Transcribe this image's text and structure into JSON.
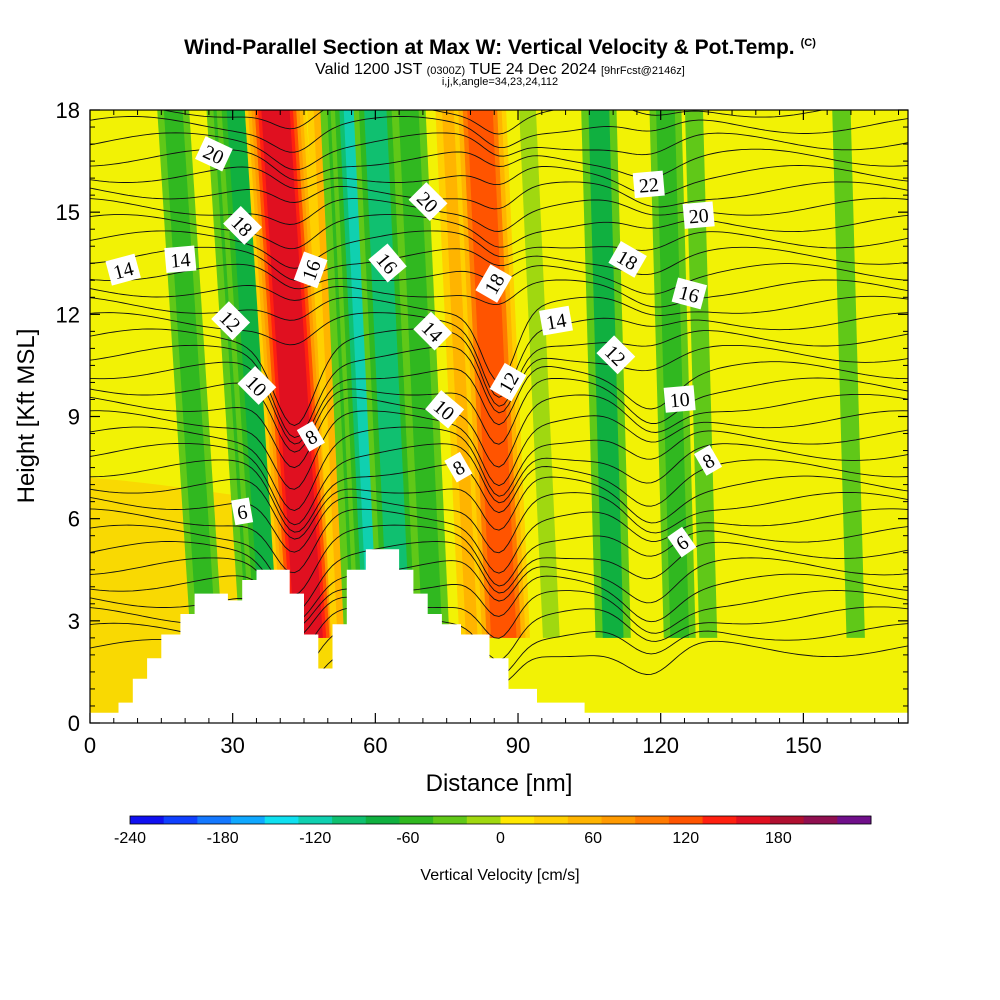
{
  "title": {
    "main": "Wind-Parallel Section at Max W: Vertical Velocity & Pot.Temp.",
    "copyright": "(C)",
    "valid_prefix": "Valid 1200 JST",
    "valid_utc": "(0300Z)",
    "valid_date": "TUE 24 Dec 2024",
    "forecast": "[9hrFcst@2146z]",
    "indices": "i,j,k,angle=34,23,24,112"
  },
  "chart_data": {
    "type": "heatmap",
    "title": "Wind-Parallel Section at Max W: Vertical Velocity & Pot.Temp.",
    "xlabel": "Distance [nm]",
    "ylabel": "Height [Kft MSL]",
    "xlim": [
      0,
      172
    ],
    "ylim": [
      0,
      18
    ],
    "x_ticks": [
      0,
      30,
      60,
      90,
      120,
      150
    ],
    "y_ticks": [
      0,
      3,
      6,
      9,
      12,
      15,
      18
    ],
    "colorbar": {
      "title": "Vertical Velocity [cm/s]",
      "range": [
        -240,
        240
      ],
      "ticks": [
        -240,
        -180,
        -120,
        -60,
        0,
        60,
        120,
        180
      ],
      "colors": [
        "#1010f0",
        "#1040ff",
        "#1478ff",
        "#10a8ff",
        "#10e0f0",
        "#10d0b0",
        "#10c070",
        "#10b040",
        "#30b820",
        "#60c818",
        "#a0d810",
        "#ffe800",
        "#ffd000",
        "#ffb400",
        "#ff9a00",
        "#ff7a00",
        "#ff5400",
        "#ff2010",
        "#e01020",
        "#b01030",
        "#901050",
        "#70108a"
      ]
    },
    "columns": [
      {
        "x": 24.5,
        "w": -45
      },
      {
        "x": 35,
        "w": -55
      },
      {
        "x": 38,
        "w": -80
      },
      {
        "x": 43,
        "w": 30
      },
      {
        "x": 46,
        "w": 165
      },
      {
        "x": 54,
        "w": 45
      },
      {
        "x": 57,
        "w": -60
      },
      {
        "x": 61,
        "w": -125
      },
      {
        "x": 65,
        "w": -90
      },
      {
        "x": 72,
        "w": -60
      },
      {
        "x": 81,
        "w": 45
      },
      {
        "x": 87,
        "w": 130
      },
      {
        "x": 97,
        "w": -20
      },
      {
        "x": 110,
        "w": -70
      },
      {
        "x": 124,
        "w": -45
      },
      {
        "x": 130,
        "w": -35
      },
      {
        "x": 161,
        "w": -40
      }
    ],
    "terrain": [
      [
        0,
        0.3
      ],
      [
        6,
        0.3
      ],
      [
        6,
        0.6
      ],
      [
        9,
        0.6
      ],
      [
        9,
        1.3
      ],
      [
        12,
        1.3
      ],
      [
        12,
        1.9
      ],
      [
        15,
        1.9
      ],
      [
        15,
        2.6
      ],
      [
        19,
        2.6
      ],
      [
        19,
        3.2
      ],
      [
        22,
        3.2
      ],
      [
        22,
        3.8
      ],
      [
        29,
        3.8
      ],
      [
        29,
        3.6
      ],
      [
        32,
        3.6
      ],
      [
        32,
        4.2
      ],
      [
        35,
        4.2
      ],
      [
        35,
        4.5
      ],
      [
        42,
        4.5
      ],
      [
        42,
        3.8
      ],
      [
        45,
        3.8
      ],
      [
        45,
        2.6
      ],
      [
        48,
        2.6
      ],
      [
        48,
        1.6
      ],
      [
        51,
        1.6
      ],
      [
        51,
        2.9
      ],
      [
        54,
        2.9
      ],
      [
        54,
        4.5
      ],
      [
        58,
        4.5
      ],
      [
        58,
        5.1
      ],
      [
        65,
        5.1
      ],
      [
        65,
        4.5
      ],
      [
        68,
        4.5
      ],
      [
        68,
        3.8
      ],
      [
        71,
        3.8
      ],
      [
        71,
        3.2
      ],
      [
        74,
        3.2
      ],
      [
        74,
        2.9
      ],
      [
        78,
        2.9
      ],
      [
        78,
        2.6
      ],
      [
        84,
        2.6
      ],
      [
        84,
        1.9
      ],
      [
        88,
        1.9
      ],
      [
        88,
        1.0
      ],
      [
        94,
        1.0
      ],
      [
        94,
        0.6
      ],
      [
        104,
        0.6
      ],
      [
        104,
        0.3
      ],
      [
        172,
        0.3
      ]
    ],
    "theta_labels": [
      {
        "text": "20",
        "x": 26,
        "y": 16.7,
        "rot": 25
      },
      {
        "text": "18",
        "x": 32,
        "y": 14.6,
        "rot": 45
      },
      {
        "text": "14",
        "x": 7,
        "y": 13.3,
        "rot": -15
      },
      {
        "text": "14",
        "x": 19,
        "y": 13.6,
        "rot": -5
      },
      {
        "text": "12",
        "x": 29.5,
        "y": 11.8,
        "rot": 45
      },
      {
        "text": "10",
        "x": 35,
        "y": 9.9,
        "rot": 45
      },
      {
        "text": "16",
        "x": 46.5,
        "y": 13.3,
        "rot": -70
      },
      {
        "text": "8",
        "x": 46.5,
        "y": 8.4,
        "rot": -30
      },
      {
        "text": "6",
        "x": 32,
        "y": 6.2,
        "rot": -10
      },
      {
        "text": "16",
        "x": 62.5,
        "y": 13.5,
        "rot": 50
      },
      {
        "text": "14",
        "x": 72,
        "y": 11.5,
        "rot": 45
      },
      {
        "text": "20",
        "x": 71,
        "y": 15.3,
        "rot": 45
      },
      {
        "text": "10",
        "x": 74.5,
        "y": 9.2,
        "rot": 40
      },
      {
        "text": "8",
        "x": 77.5,
        "y": 7.5,
        "rot": -30
      },
      {
        "text": "18",
        "x": 85,
        "y": 12.9,
        "rot": -60
      },
      {
        "text": "12",
        "x": 88,
        "y": 10.0,
        "rot": -60
      },
      {
        "text": "14",
        "x": 98,
        "y": 11.8,
        "rot": -10
      },
      {
        "text": "12",
        "x": 110.5,
        "y": 10.8,
        "rot": 45
      },
      {
        "text": "18",
        "x": 113,
        "y": 13.6,
        "rot": 30
      },
      {
        "text": "22",
        "x": 117.5,
        "y": 15.8,
        "rot": -5
      },
      {
        "text": "20",
        "x": 128,
        "y": 14.9,
        "rot": -5
      },
      {
        "text": "16",
        "x": 126,
        "y": 12.6,
        "rot": 15
      },
      {
        "text": "10",
        "x": 124,
        "y": 9.5,
        "rot": -5
      },
      {
        "text": "8",
        "x": 130,
        "y": 7.7,
        "rot": -30
      },
      {
        "text": "6",
        "x": 124.5,
        "y": 5.3,
        "rot": -35
      }
    ]
  }
}
